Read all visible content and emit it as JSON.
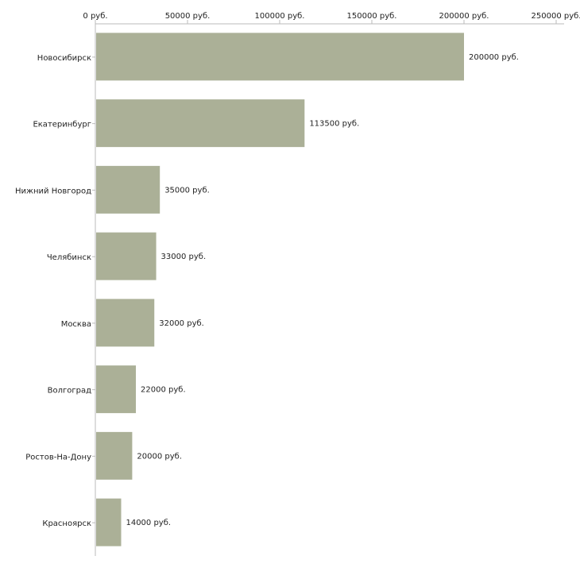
{
  "chart_data": {
    "type": "bar",
    "orientation": "horizontal",
    "title": "",
    "xlabel": "",
    "ylabel": "",
    "xlim": [
      0,
      250000
    ],
    "ticks": [
      0,
      50000,
      100000,
      150000,
      200000,
      250000
    ],
    "tick_labels": [
      "0 руб.",
      "50000 руб.",
      "100000 руб.",
      "150000 руб.",
      "200000 руб.",
      "250000 руб."
    ],
    "categories": [
      "Новосибирск",
      "Екатеринбург",
      "Нижний Новгород",
      "Челябинск",
      "Москва",
      "Волгоград",
      "Ростов-На-Дону",
      "Красноярск"
    ],
    "values": [
      200000,
      113500,
      35000,
      33000,
      32000,
      22000,
      20000,
      14000
    ],
    "value_labels": [
      "200000 руб.",
      "113500 руб.",
      "35000 руб.",
      "33000 руб.",
      "32000 руб.",
      "22000 руб.",
      "20000 руб.",
      "14000 руб."
    ],
    "grid": false,
    "legend": "none",
    "colors": {
      "bar": "#abb097",
      "axis": "#bbbbbb",
      "text": "#222222"
    }
  }
}
